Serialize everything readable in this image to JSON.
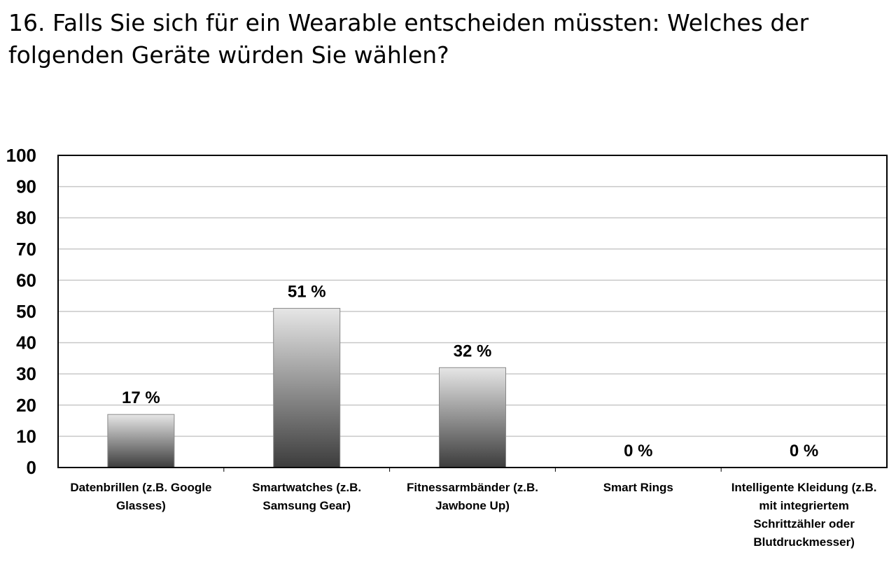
{
  "chart_data": {
    "type": "bar",
    "title": "16. Falls Sie sich für ein Wearable entscheiden müssten: Welches der folgenden Geräte würden Sie wählen?",
    "categories": [
      "Datenbrillen (z.B. Google Glasses)",
      "Smartwatches (z.B. Samsung Gear)",
      "Fitnessarmbänder (z.B. Jawbone Up)",
      "Smart Rings",
      "Intelligente Kleidung (z.B. mit integriertem Schrittzähler oder Blutdruckmesser)"
    ],
    "values": [
      17,
      51,
      32,
      0,
      0
    ],
    "data_labels": [
      "17 %",
      "51 %",
      "32 %",
      "0 %",
      "0 %"
    ],
    "ylim": [
      0,
      100
    ],
    "yticks": [
      0,
      10,
      20,
      30,
      40,
      50,
      60,
      70,
      80,
      90,
      100
    ],
    "grid": true,
    "legend": "none",
    "bar_gradient": [
      "#e6e6e6",
      "#3c3c3c"
    ]
  }
}
